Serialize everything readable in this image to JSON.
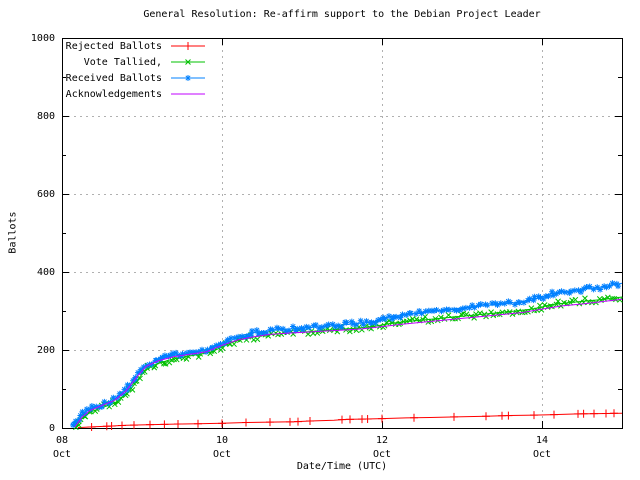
{
  "title": "General Resolution: Re-affirm support to the Debian Project Leader",
  "colors": {
    "background": "#ffffff",
    "border": "#000000",
    "grid": "#b0b0b0",
    "rejected": "#ff0000",
    "tallied": "#00c000",
    "received": "#0080ff",
    "acknowledgements": "#c000ff"
  },
  "chart_data": {
    "type": "line",
    "title": "General Resolution: Re-affirm support to the Debian Project Leader",
    "xlabel": "Date/Time (UTC)",
    "ylabel": "Ballots",
    "ylim": [
      0,
      1000
    ],
    "yticks": [
      0,
      200,
      400,
      600,
      800,
      1000
    ],
    "yminor": [
      100,
      300,
      500,
      700,
      900
    ],
    "grid": true,
    "legend_position": "top-left",
    "x_unit": "days since 08 Oct 00:00 (UTC)",
    "x_range_days": [
      0,
      7
    ],
    "xticks": [
      {
        "t": 0,
        "day": "08",
        "month": "Oct"
      },
      {
        "t": 2,
        "day": "10",
        "month": "Oct"
      },
      {
        "t": 4,
        "day": "12",
        "month": "Oct"
      },
      {
        "t": 6,
        "day": "14",
        "month": "Oct"
      }
    ],
    "series": [
      {
        "name": "Rejected Ballots",
        "color": "#ff0000",
        "marker": "plus",
        "marker_density": "sparse",
        "points": [
          [
            0.2,
            1
          ],
          [
            0.4,
            3
          ],
          [
            0.6,
            5
          ],
          [
            0.8,
            7
          ],
          [
            1.0,
            8
          ],
          [
            1.2,
            9
          ],
          [
            1.4,
            10
          ],
          [
            1.7,
            11
          ],
          [
            2.0,
            12
          ],
          [
            2.3,
            14
          ],
          [
            2.6,
            15
          ],
          [
            2.9,
            16
          ],
          [
            3.1,
            18
          ],
          [
            3.4,
            20
          ],
          [
            3.55,
            22
          ],
          [
            3.8,
            23
          ],
          [
            4.0,
            24
          ],
          [
            4.3,
            26
          ],
          [
            4.6,
            27
          ],
          [
            5.0,
            29
          ],
          [
            5.3,
            30
          ],
          [
            5.6,
            32
          ],
          [
            5.9,
            33
          ],
          [
            6.1,
            34
          ],
          [
            6.4,
            36
          ],
          [
            6.7,
            37
          ],
          [
            7.0,
            38
          ]
        ],
        "marker_t": [
          0.37,
          0.56,
          0.62,
          0.75,
          0.9,
          1.1,
          1.28,
          1.45,
          1.7,
          2.0,
          2.3,
          2.6,
          2.85,
          2.95,
          3.1,
          3.5,
          3.6,
          3.75,
          3.82,
          4.0,
          4.4,
          4.9,
          5.3,
          5.5,
          5.58,
          5.9,
          6.15,
          6.45,
          6.52,
          6.65,
          6.8,
          6.9
        ]
      },
      {
        "name": "Vote Tallied,",
        "color": "#00c000",
        "marker": "cross",
        "marker_density": "dense",
        "points": [
          [
            0.17,
            1
          ],
          [
            0.2,
            10
          ],
          [
            0.24,
            24
          ],
          [
            0.3,
            35
          ],
          [
            0.37,
            42
          ],
          [
            0.45,
            48
          ],
          [
            0.52,
            54
          ],
          [
            0.6,
            59
          ],
          [
            0.67,
            66
          ],
          [
            0.74,
            76
          ],
          [
            0.82,
            90
          ],
          [
            0.9,
            110
          ],
          [
            0.97,
            130
          ],
          [
            1.02,
            143
          ],
          [
            1.08,
            153
          ],
          [
            1.15,
            161
          ],
          [
            1.24,
            168
          ],
          [
            1.34,
            174
          ],
          [
            1.44,
            179
          ],
          [
            1.54,
            183
          ],
          [
            1.66,
            187
          ],
          [
            1.78,
            191
          ],
          [
            1.88,
            196
          ],
          [
            1.98,
            206
          ],
          [
            2.08,
            216
          ],
          [
            2.18,
            223
          ],
          [
            2.3,
            229
          ],
          [
            2.44,
            235
          ],
          [
            2.58,
            239
          ],
          [
            2.74,
            242
          ],
          [
            2.9,
            244
          ],
          [
            3.07,
            247
          ],
          [
            3.27,
            250
          ],
          [
            3.47,
            253
          ],
          [
            3.67,
            256
          ],
          [
            3.87,
            260
          ],
          [
            4.0,
            264
          ],
          [
            4.1,
            268
          ],
          [
            4.27,
            272
          ],
          [
            4.47,
            276
          ],
          [
            4.67,
            280
          ],
          [
            4.87,
            284
          ],
          [
            5.07,
            288
          ],
          [
            5.27,
            292
          ],
          [
            5.47,
            296
          ],
          [
            5.67,
            300
          ],
          [
            5.87,
            305
          ],
          [
            6.0,
            310
          ],
          [
            6.1,
            316
          ],
          [
            6.27,
            320
          ],
          [
            6.47,
            324
          ],
          [
            6.67,
            328
          ],
          [
            6.87,
            332
          ],
          [
            7.0,
            336
          ]
        ]
      },
      {
        "name": "Received Ballots",
        "color": "#0080ff",
        "marker": "asterisk",
        "marker_density": "dense",
        "points": [
          [
            0.15,
            2
          ],
          [
            0.18,
            14
          ],
          [
            0.22,
            30
          ],
          [
            0.28,
            41
          ],
          [
            0.35,
            48
          ],
          [
            0.42,
            54
          ],
          [
            0.5,
            60
          ],
          [
            0.58,
            65
          ],
          [
            0.65,
            73
          ],
          [
            0.72,
            84
          ],
          [
            0.8,
            98
          ],
          [
            0.88,
            118
          ],
          [
            0.95,
            138
          ],
          [
            1.0,
            151
          ],
          [
            1.06,
            161
          ],
          [
            1.13,
            169
          ],
          [
            1.22,
            176
          ],
          [
            1.32,
            182
          ],
          [
            1.42,
            187
          ],
          [
            1.52,
            191
          ],
          [
            1.64,
            195
          ],
          [
            1.76,
            199
          ],
          [
            1.86,
            204
          ],
          [
            1.96,
            214
          ],
          [
            2.06,
            226
          ],
          [
            2.16,
            233
          ],
          [
            2.28,
            239
          ],
          [
            2.42,
            245
          ],
          [
            2.56,
            249
          ],
          [
            2.72,
            252
          ],
          [
            2.88,
            254
          ],
          [
            3.05,
            257
          ],
          [
            3.25,
            260
          ],
          [
            3.45,
            263
          ],
          [
            3.65,
            267
          ],
          [
            3.85,
            271
          ],
          [
            3.98,
            277
          ],
          [
            4.08,
            284
          ],
          [
            4.25,
            289
          ],
          [
            4.45,
            294
          ],
          [
            4.65,
            299
          ],
          [
            4.85,
            304
          ],
          [
            5.05,
            309
          ],
          [
            5.25,
            313
          ],
          [
            5.45,
            317
          ],
          [
            5.65,
            321
          ],
          [
            5.85,
            327
          ],
          [
            5.98,
            334
          ],
          [
            6.08,
            343
          ],
          [
            6.25,
            349
          ],
          [
            6.45,
            354
          ],
          [
            6.65,
            359
          ],
          [
            6.85,
            365
          ],
          [
            7.0,
            371
          ]
        ]
      },
      {
        "name": "Acknowledgements",
        "color": "#c000ff",
        "marker": "none",
        "marker_density": "none",
        "points": [
          [
            0.16,
            2
          ],
          [
            0.25,
            28
          ],
          [
            0.35,
            45
          ],
          [
            0.5,
            58
          ],
          [
            0.65,
            70
          ],
          [
            0.8,
            95
          ],
          [
            0.95,
            135
          ],
          [
            1.05,
            158
          ],
          [
            1.2,
            172
          ],
          [
            1.4,
            183
          ],
          [
            1.6,
            189
          ],
          [
            1.8,
            195
          ],
          [
            2.0,
            212
          ],
          [
            2.2,
            226
          ],
          [
            2.4,
            234
          ],
          [
            2.6,
            240
          ],
          [
            2.8,
            243
          ],
          [
            3.0,
            245
          ],
          [
            3.25,
            248
          ],
          [
            3.5,
            251
          ],
          [
            3.75,
            254
          ],
          [
            4.0,
            260
          ],
          [
            4.25,
            266
          ],
          [
            4.5,
            271
          ],
          [
            4.75,
            276
          ],
          [
            5.0,
            281
          ],
          [
            5.25,
            286
          ],
          [
            5.5,
            291
          ],
          [
            5.75,
            296
          ],
          [
            6.0,
            305
          ],
          [
            6.25,
            313
          ],
          [
            6.5,
            318
          ],
          [
            6.75,
            324
          ],
          [
            7.0,
            330
          ]
        ]
      }
    ]
  }
}
